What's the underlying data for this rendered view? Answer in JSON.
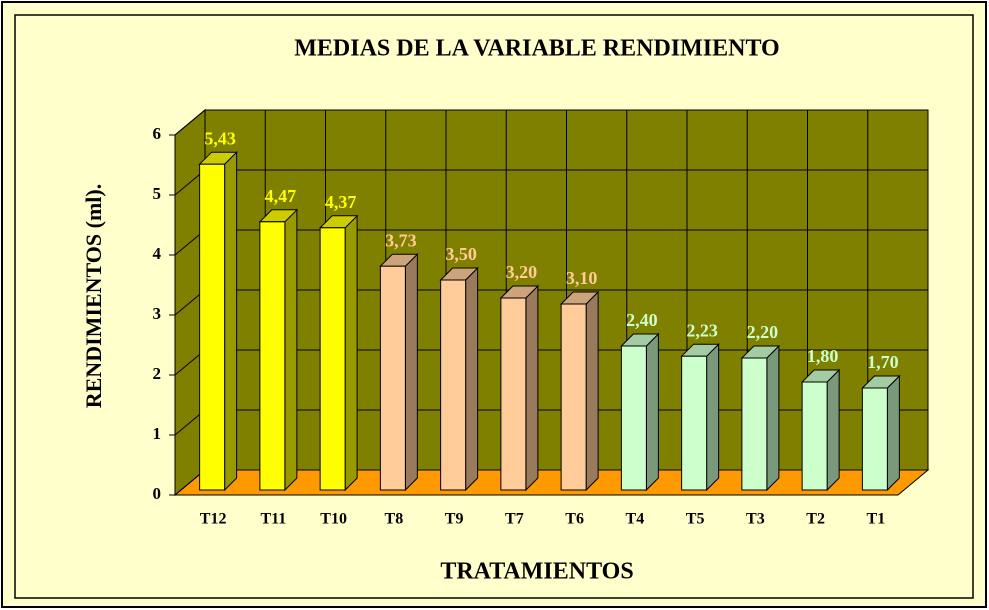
{
  "chart_data": {
    "type": "bar3d",
    "title": "MEDIAS DE LA VARIABLE RENDIMIENTO",
    "x_label": "TRATAMIENTOS",
    "y_label": "RENDIMIENTOS (ml).",
    "categories": [
      "T12",
      "T11",
      "T10",
      "T8",
      "T9",
      "T7",
      "T6",
      "T4",
      "T5",
      "T3",
      "T2",
      "T1"
    ],
    "values": [
      5.43,
      4.47,
      4.37,
      3.73,
      3.5,
      3.2,
      3.1,
      2.4,
      2.23,
      2.2,
      1.8,
      1.7
    ],
    "value_labels": [
      "5,43",
      "4,47",
      "4,37",
      "3,73",
      "3,50",
      "3,20",
      "3,10",
      "2,40",
      "2,23",
      "2,20",
      "1,80",
      "1,70"
    ],
    "colors": [
      "#ffff00",
      "#ffff00",
      "#ffff00",
      "#ffcc99",
      "#ffcc99",
      "#ffcc99",
      "#ffcc99",
      "#ccffcc",
      "#ccffcc",
      "#ccffcc",
      "#ccffcc",
      "#ccffcc"
    ],
    "wall_color": "#808000",
    "floor_color": "#ff9900",
    "ylim": [
      0,
      6
    ],
    "yticks": [
      0,
      1,
      2,
      3,
      4,
      5,
      6
    ],
    "grid": true
  }
}
